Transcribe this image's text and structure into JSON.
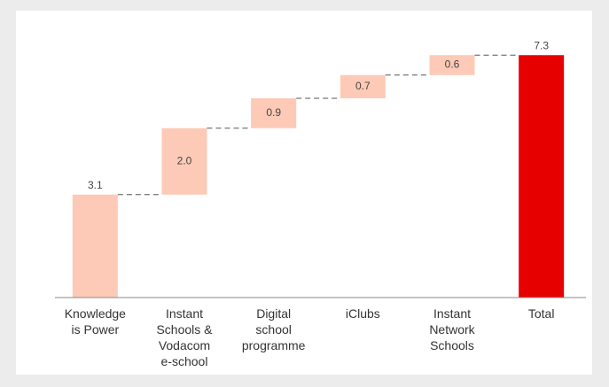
{
  "chart_data": {
    "type": "waterfall",
    "categories": [
      [
        "Knowledge",
        "is Power"
      ],
      [
        "Instant",
        "Schools &",
        "Vodacom",
        "e-school"
      ],
      [
        "Digital",
        "school",
        "programme"
      ],
      [
        "iClubs"
      ],
      [
        "Instant",
        "Network",
        "Schools"
      ],
      [
        "Total"
      ]
    ],
    "values": [
      3.1,
      2.0,
      0.9,
      0.7,
      0.6,
      7.3
    ],
    "value_labels": [
      "3.1",
      "2.0",
      "0.9",
      "0.7",
      "0.6",
      "7.3"
    ],
    "colors": [
      "#fccab6",
      "#fccab6",
      "#fccab6",
      "#fccab6",
      "#fccab6",
      "#e60000"
    ],
    "ylim": [
      0,
      8
    ]
  }
}
